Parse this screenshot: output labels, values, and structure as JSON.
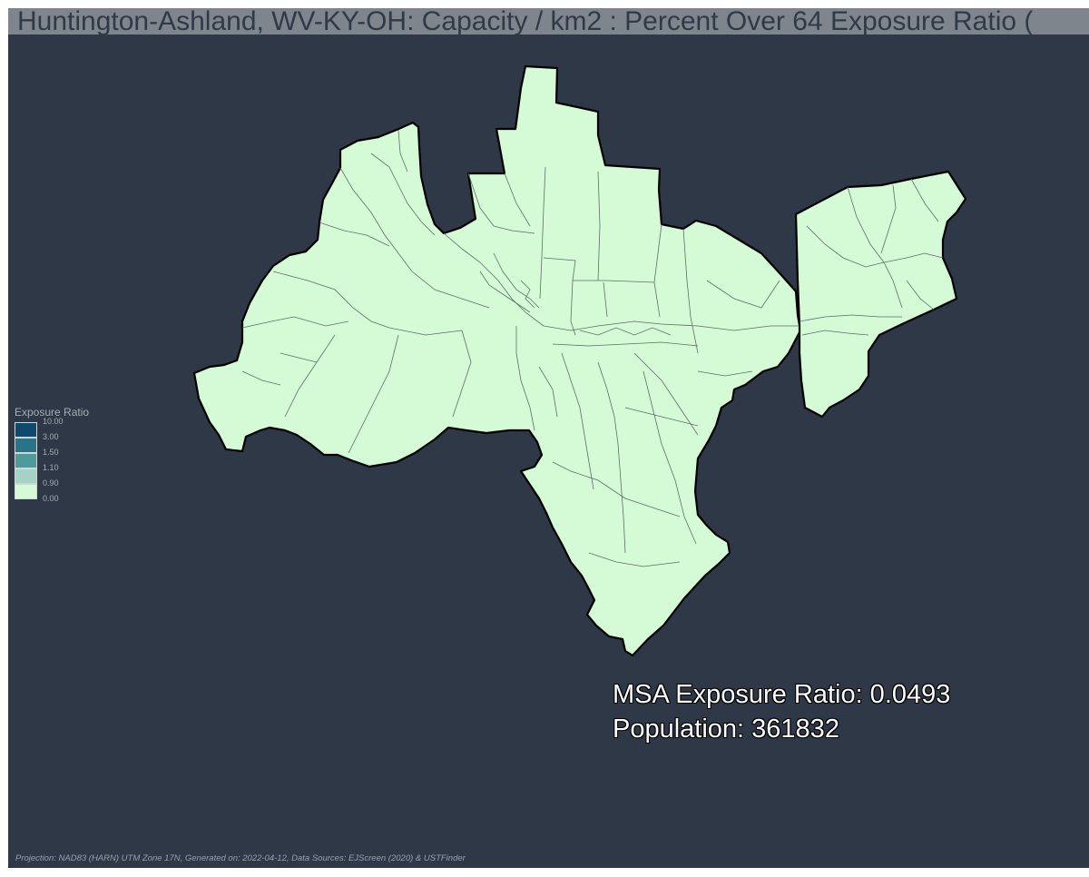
{
  "title": "Huntington-Ashland, WV-KY-OH: Capacity / km2 : Percent Over 64 Exposure Ratio (",
  "legend": {
    "title": "Exposure Ratio",
    "classes": [
      {
        "label": "10.00",
        "color": "#0d4a6e"
      },
      {
        "label": "3.00",
        "color": "#2a7489"
      },
      {
        "label": "1.50",
        "color": "#4f9b9b"
      },
      {
        "label": "1.10",
        "color": "#a3d3c4"
      },
      {
        "label": "0.90",
        "color": "#d4fad6"
      },
      {
        "label": "0.00",
        "color": ""
      }
    ]
  },
  "stats": {
    "exposure_line": "MSA Exposure Ratio: 0.0493",
    "population_line": "Population: 361832"
  },
  "footer": "Projection: NAD83 (HARN) UTM Zone 17N, Generated on: 2022-04-12, Data Sources: EJScreen (2020) & USTFinder",
  "colors": {
    "background": "#2e3847",
    "title_bar": "#7f858c",
    "region_fill": "#d4fad6",
    "region_outline": "#000000",
    "internal_lines": "#5f6e68"
  }
}
